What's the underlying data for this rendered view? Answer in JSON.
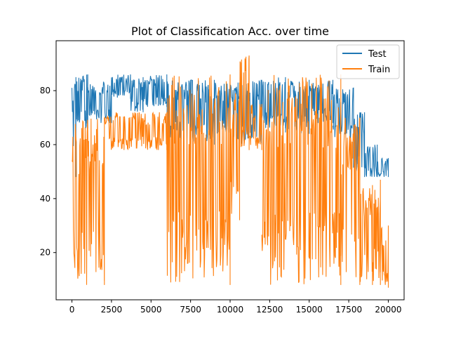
{
  "chart_data": {
    "type": "line",
    "title": "Plot of Classification Acc. over time",
    "xlabel": "",
    "ylabel": "",
    "xlim": [
      -1000,
      21000
    ],
    "ylim": [
      2.5,
      98.5
    ],
    "xticks": [
      0,
      2500,
      5000,
      7500,
      10000,
      12500,
      15000,
      17500,
      20000
    ],
    "xtick_labels": [
      "0",
      "2500",
      "5000",
      "7500",
      "10000",
      "12500",
      "15000",
      "17500",
      "20000"
    ],
    "yticks": [
      20,
      40,
      60,
      80
    ],
    "ytick_labels": [
      "20",
      "40",
      "60",
      "80"
    ],
    "grid": false,
    "legend_position": "top-right",
    "series": [
      {
        "name": "Test",
        "color": "#1f77b4",
        "style": "dense oscillating band",
        "segments": [
          {
            "x": [
              0,
              250
            ],
            "low": 48,
            "high": 85
          },
          {
            "x": [
              250,
              1000
            ],
            "low": 66,
            "high": 86
          },
          {
            "x": [
              1000,
              2500
            ],
            "low": 68,
            "high": 84
          },
          {
            "x": [
              2500,
              3700
            ],
            "low": 77,
            "high": 86
          },
          {
            "x": [
              3700,
              4500
            ],
            "low": 72,
            "high": 85
          },
          {
            "x": [
              4500,
              6000
            ],
            "low": 74,
            "high": 86
          },
          {
            "x": [
              6000,
              7500
            ],
            "low": 62,
            "high": 84
          },
          {
            "x": [
              7500,
              9000
            ],
            "low": 60,
            "high": 84
          },
          {
            "x": [
              9000,
              10500
            ],
            "low": 62,
            "high": 83
          },
          {
            "x": [
              10500,
              12000
            ],
            "low": 60,
            "high": 84
          },
          {
            "x": [
              12000,
              13500
            ],
            "low": 66,
            "high": 85
          },
          {
            "x": [
              13500,
              15000
            ],
            "low": 64,
            "high": 84
          },
          {
            "x": [
              15000,
              16500
            ],
            "low": 68,
            "high": 84
          },
          {
            "x": [
              16500,
              17800
            ],
            "low": 62,
            "high": 81
          },
          {
            "x": [
              17800,
              18500
            ],
            "low": 48,
            "high": 72
          },
          {
            "x": [
              18500,
              19300
            ],
            "low": 48,
            "high": 60
          },
          {
            "x": [
              19300,
              20000
            ],
            "low": 48,
            "high": 55
          }
        ]
      },
      {
        "name": "Train",
        "color": "#ff7f0e",
        "style": "dense oscillating band",
        "segments": [
          {
            "x": [
              0,
              2050
            ],
            "low": 8,
            "high": 70
          },
          {
            "x": [
              2050,
              6000
            ],
            "low": 58,
            "high": 72
          },
          {
            "x": [
              6000,
              10000
            ],
            "low": 8,
            "high": 86
          },
          {
            "x": [
              10000,
              10600
            ],
            "low": 32,
            "high": 83
          },
          {
            "x": [
              10600,
              11200
            ],
            "low": 58,
            "high": 93
          },
          {
            "x": [
              11200,
              12000
            ],
            "low": 58,
            "high": 75
          },
          {
            "x": [
              12000,
              17000
            ],
            "low": 8,
            "high": 86
          },
          {
            "x": [
              17000,
              18200
            ],
            "low": 8,
            "high": 70
          },
          {
            "x": [
              18200,
              19000
            ],
            "low": 8,
            "high": 45
          },
          {
            "x": [
              19000,
              19500
            ],
            "low": 8,
            "high": 47
          },
          {
            "x": [
              19500,
              20000
            ],
            "low": 7,
            "high": 30
          }
        ]
      }
    ]
  }
}
